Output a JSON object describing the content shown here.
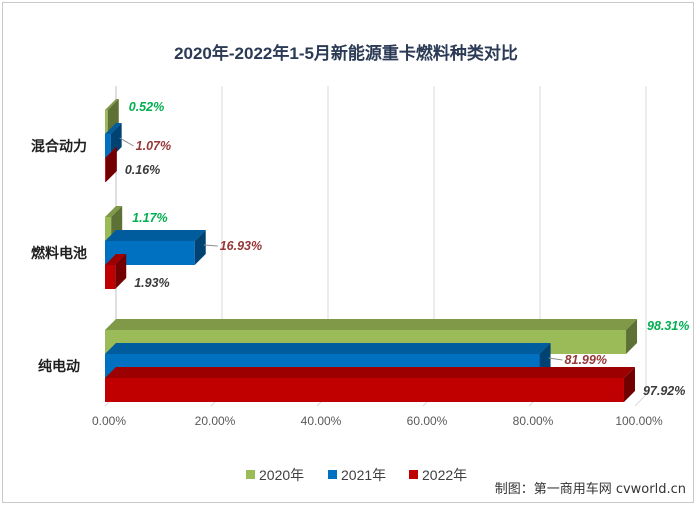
{
  "chart_data": {
    "type": "bar",
    "orientation": "horizontal",
    "title": "2020年-2022年1-5月新能源重卡燃料种类对比",
    "categories": [
      "混合动力",
      "燃料电池",
      "纯电动"
    ],
    "series": [
      {
        "name": "2020年",
        "color": "#9bbb59",
        "values": [
          0.52,
          1.17,
          98.31
        ],
        "labels": [
          "0.52%",
          "1.17%",
          "98.31%"
        ],
        "label_color": "#00b050"
      },
      {
        "name": "2021年",
        "color": "#0070c0",
        "values": [
          1.07,
          16.93,
          81.99
        ],
        "labels": [
          "1.07%",
          "16.93%",
          "81.99%"
        ],
        "label_color": "#953735"
      },
      {
        "name": "2022年",
        "color": "#c00000",
        "values": [
          0.16,
          1.93,
          97.92
        ],
        "labels": [
          "0.16%",
          "1.93%",
          "97.92%"
        ],
        "label_color": "#3a3a3a"
      }
    ],
    "x_ticks": [
      "0.00%",
      "20.00%",
      "40.00%",
      "60.00%",
      "80.00%",
      "100.00%"
    ],
    "xlim": [
      0,
      100
    ],
    "legend_position": "bottom",
    "gridlines": true,
    "style": "3d"
  },
  "source": "制图：第一商用车网 cvworld.cn"
}
